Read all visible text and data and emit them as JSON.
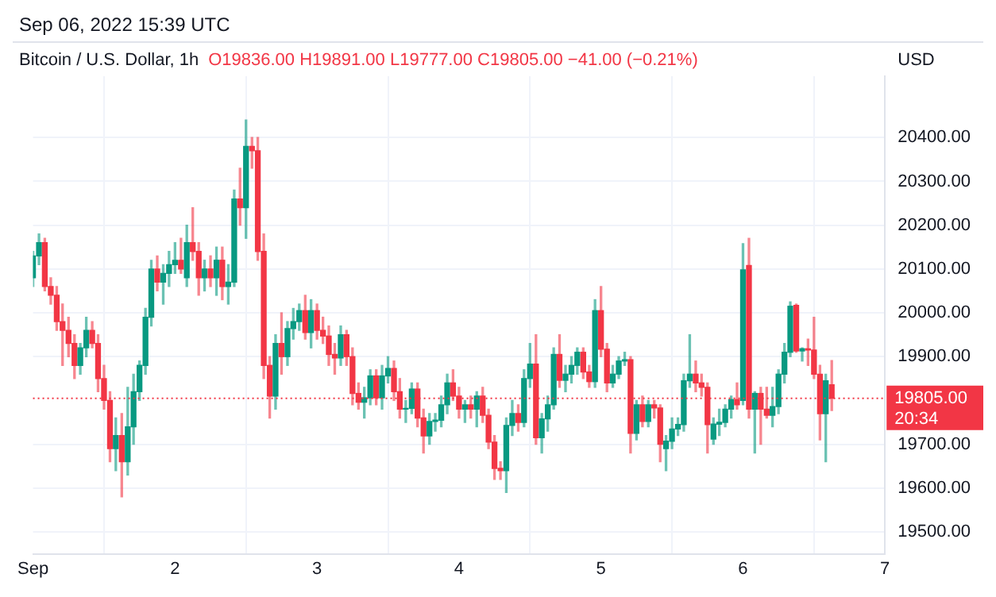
{
  "chart_data": {
    "type": "candlestick",
    "title": "Bitcoin / U.S. Dollar, 1h",
    "subtitle": "O19836.00 H19891.00 L19777.00 C19805.00 −41.00 (−0.21%)",
    "annotations": [
      "Sep 06, 2022 15:39 UTC",
      "20:34"
    ],
    "ylabel": "USD",
    "colors": [
      "#089981",
      "#089981",
      "#f23645",
      "#f23645",
      "#f23645",
      "#f23645",
      "#f23645",
      "#f23645",
      "#089981",
      "#089981",
      "#f23645",
      "#f23645",
      "#f23645",
      "#f23645",
      "#089981",
      "#f23645",
      "#089981",
      "#089981",
      "#089981",
      "#089981",
      "#089981",
      "#f23645",
      "#089981",
      "#089981",
      "#089981",
      "#f23645",
      "#089981",
      "#f23645",
      "#f23645",
      "#089981",
      "#f23645",
      "#089981",
      "#f23645",
      "#089981",
      "#089981",
      "#f23645",
      "#089981",
      "#f23645",
      "#f23645",
      "#f23645",
      "#f23645",
      "#089981",
      "#f23645",
      "#089981",
      "#089981",
      "#089981",
      "#f23645",
      "#089981",
      "#f23645",
      "#f23645",
      "#f23645",
      "#f23645",
      "#089981",
      "#f23645",
      "#f23645",
      "#f23645",
      "#089981",
      "#089981",
      "#f23645",
      "#089981",
      "#089981",
      "#f23645",
      "#f23645",
      "#089981",
      "#089981",
      "#f23645",
      "#f23645",
      "#089981",
      "#089981",
      "#089981",
      "#089981",
      "#f23645",
      "#f23645",
      "#089981",
      "#f23645",
      "#089981",
      "#f23645",
      "#f23645",
      "#f23645",
      "#f23645",
      "#089981",
      "#089981",
      "#f23645",
      "#089981",
      "#089981",
      "#f23645",
      "#089981",
      "#089981",
      "#089981",
      "#f23645",
      "#089981",
      "#089981",
      "#089981",
      "#f23645",
      "#f23645",
      "#089981",
      "#f23645",
      "#f23645",
      "#089981",
      "#089981",
      "#089981",
      "#f23645",
      "#089981",
      "#f23645",
      "#089981",
      "#f23645",
      "#f23645",
      "#089981",
      "#089981",
      "#089981",
      "#089981",
      "#089981",
      "#f23645",
      "#f23645",
      "#f23645",
      "#089981",
      "#089981",
      "#089981",
      "#089981",
      "#f23645",
      "#089981",
      "#f23645",
      "#089981",
      "#f23645",
      "#f23645",
      "#089981",
      "#089981",
      "#089981",
      "#089981",
      "#f23645",
      "#089981",
      "#f23645",
      "#f23645",
      "#f23645",
      "#089981",
      "#f23645"
    ],
    "x": [
      1,
      1.042,
      1.083,
      1.125,
      1.167,
      1.208,
      1.25,
      1.292,
      1.333,
      1.375,
      1.417,
      1.458,
      1.5,
      1.542,
      1.583,
      1.625,
      1.667,
      1.708,
      1.75,
      1.792,
      1.833,
      1.875,
      1.917,
      1.958,
      2,
      2.042,
      2.083,
      2.125,
      2.167,
      2.208,
      2.25,
      2.292,
      2.333,
      2.375,
      2.417,
      2.458,
      2.5,
      2.542,
      2.583,
      2.625,
      2.667,
      2.708,
      2.75,
      2.792,
      2.833,
      2.875,
      2.917,
      2.958,
      3,
      3.042,
      3.083,
      3.125,
      3.167,
      3.208,
      3.25,
      3.292,
      3.333,
      3.375,
      3.417,
      3.458,
      3.5,
      3.542,
      3.583,
      3.625,
      3.667,
      3.708,
      3.75,
      3.792,
      3.833,
      3.875,
      3.917,
      3.958,
      4,
      4.042,
      4.083,
      4.125,
      4.167,
      4.208,
      4.25,
      4.292,
      4.333,
      4.375,
      4.417,
      4.458,
      4.5,
      4.542,
      4.583,
      4.625,
      4.667,
      4.708,
      4.75,
      4.792,
      4.833,
      4.875,
      4.917,
      4.958,
      5,
      5.042,
      5.083,
      5.125,
      5.167,
      5.208,
      5.25,
      5.292,
      5.333,
      5.375,
      5.417,
      5.458,
      5.5,
      5.542,
      5.583,
      5.625,
      5.667,
      5.708,
      5.75,
      5.792,
      5.833,
      5.875,
      5.917,
      5.958,
      6,
      6.042,
      6.083,
      6.125,
      6.167,
      6.208,
      6.25,
      6.292,
      6.333,
      6.375,
      6.417,
      6.458,
      6.5,
      6.542,
      6.583,
      6.625
    ],
    "ohlc": [
      [
        20080,
        20140,
        20060,
        20130
      ],
      [
        20130,
        20180,
        20110,
        20160
      ],
      [
        20160,
        20170,
        20050,
        20060
      ],
      [
        20060,
        20080,
        20020,
        20040
      ],
      [
        20040,
        20060,
        19960,
        19980
      ],
      [
        19980,
        20020,
        19880,
        19960
      ],
      [
        19960,
        19990,
        19900,
        19930
      ],
      [
        19930,
        19950,
        19850,
        19880
      ],
      [
        19880,
        19930,
        19860,
        19920
      ],
      [
        19920,
        19990,
        19900,
        19960
      ],
      [
        19960,
        19980,
        19920,
        19930
      ],
      [
        19930,
        19950,
        19820,
        19850
      ],
      [
        19850,
        19880,
        19780,
        19800
      ],
      [
        19800,
        19820,
        19660,
        19690
      ],
      [
        19690,
        19760,
        19640,
        19720
      ],
      [
        19720,
        19770,
        19580,
        19660
      ],
      [
        19660,
        19830,
        19630,
        19740
      ],
      [
        19740,
        19860,
        19700,
        19820
      ],
      [
        19820,
        19890,
        19800,
        19880
      ],
      [
        19880,
        20010,
        19860,
        19990
      ],
      [
        19990,
        20120,
        19970,
        20100
      ],
      [
        20100,
        20130,
        20050,
        20070
      ],
      [
        20070,
        20110,
        20020,
        20090
      ],
      [
        20090,
        20140,
        20060,
        20110
      ],
      [
        20110,
        20160,
        20090,
        20120
      ],
      [
        20120,
        20170,
        20090,
        20100
      ],
      [
        20080,
        20200,
        20060,
        20160
      ],
      [
        20160,
        20240,
        20120,
        20140
      ],
      [
        20140,
        20160,
        20040,
        20080
      ],
      [
        20080,
        20120,
        20050,
        20100
      ],
      [
        20100,
        20130,
        20060,
        20080
      ],
      [
        20080,
        20150,
        20040,
        20120
      ],
      [
        20120,
        20150,
        20030,
        20060
      ],
      [
        20060,
        20110,
        20020,
        20070
      ],
      [
        20070,
        20280,
        20060,
        20260
      ],
      [
        20260,
        20330,
        20200,
        20240
      ],
      [
        20240,
        20440,
        20170,
        20380
      ],
      [
        20380,
        20400,
        20330,
        20370
      ],
      [
        20370,
        20400,
        20120,
        20140
      ],
      [
        20140,
        20180,
        19850,
        19880
      ],
      [
        19880,
        19900,
        19760,
        19810
      ],
      [
        19810,
        19950,
        19780,
        19930
      ],
      [
        19930,
        20000,
        19860,
        19900
      ],
      [
        19900,
        19980,
        19880,
        19964
      ],
      [
        19964,
        20010,
        19940,
        19980
      ],
      [
        19980,
        20020,
        19960,
        20005
      ],
      [
        20005,
        20040,
        19940,
        19955
      ],
      [
        19955,
        20030,
        19920,
        20005
      ],
      [
        20005,
        20020,
        19940,
        19960
      ],
      [
        19960,
        19990,
        19930,
        19947
      ],
      [
        19947,
        19970,
        19880,
        19905
      ],
      [
        19905,
        19930,
        19860,
        19897
      ],
      [
        19897,
        19970,
        19880,
        19950
      ],
      [
        19950,
        19960,
        19880,
        19900
      ],
      [
        19900,
        19920,
        19790,
        19816
      ],
      [
        19816,
        19840,
        19780,
        19796
      ],
      [
        19796,
        19830,
        19760,
        19806
      ],
      [
        19806,
        19870,
        19790,
        19856
      ],
      [
        19856,
        19870,
        19790,
        19806
      ],
      [
        19806,
        19880,
        19780,
        19856
      ],
      [
        19856,
        19900,
        19840,
        19873
      ],
      [
        19873,
        19890,
        19800,
        19820
      ],
      [
        19820,
        19850,
        19760,
        19780
      ],
      [
        19780,
        19800,
        19750,
        19782
      ],
      [
        19782,
        19840,
        19770,
        19826
      ],
      [
        19826,
        19840,
        19740,
        19760
      ],
      [
        19760,
        19780,
        19680,
        19719
      ],
      [
        19719,
        19770,
        19700,
        19752
      ],
      [
        19752,
        19770,
        19730,
        19755
      ],
      [
        19755,
        19810,
        19740,
        19790
      ],
      [
        19790,
        19860,
        19770,
        19840
      ],
      [
        19840,
        19870,
        19800,
        19810
      ],
      [
        19810,
        19830,
        19760,
        19780
      ],
      [
        19780,
        19800,
        19750,
        19790
      ],
      [
        19790,
        19810,
        19760,
        19780
      ],
      [
        19780,
        19820,
        19740,
        19810
      ],
      [
        19810,
        19830,
        19750,
        19766
      ],
      [
        19766,
        19780,
        19690,
        19705
      ],
      [
        19705,
        19720,
        19620,
        19645
      ],
      [
        19645,
        19660,
        19620,
        19640
      ],
      [
        19640,
        19760,
        19590,
        19743
      ],
      [
        19743,
        19800,
        19720,
        19770
      ],
      [
        19770,
        19790,
        19730,
        19750
      ],
      [
        19750,
        19870,
        19740,
        19850
      ],
      [
        19850,
        19930,
        19830,
        19883
      ],
      [
        19883,
        19950,
        19700,
        19715
      ],
      [
        19715,
        19770,
        19680,
        19758
      ],
      [
        19758,
        19810,
        19730,
        19790
      ],
      [
        19790,
        19920,
        19780,
        19905
      ],
      [
        19905,
        19950,
        19830,
        19846
      ],
      [
        19846,
        19880,
        19820,
        19860
      ],
      [
        19860,
        19900,
        19840,
        19880
      ],
      [
        19880,
        19920,
        19860,
        19910
      ],
      [
        19910,
        19920,
        19850,
        19865
      ],
      [
        19865,
        19880,
        19830,
        19843
      ],
      [
        19843,
        20030,
        19830,
        20005
      ],
      [
        20005,
        20060,
        19900,
        19917
      ],
      [
        19917,
        19930,
        19820,
        19840
      ],
      [
        19840,
        19880,
        19830,
        19860
      ],
      [
        19860,
        19900,
        19850,
        19890
      ],
      [
        19890,
        19910,
        19880,
        19893
      ],
      [
        19893,
        19900,
        19680,
        19725
      ],
      [
        19725,
        19800,
        19710,
        19790
      ],
      [
        19790,
        19810,
        19740,
        19752
      ],
      [
        19752,
        19800,
        19740,
        19790
      ],
      [
        19790,
        19800,
        19760,
        19783
      ],
      [
        19783,
        19790,
        19660,
        19700
      ],
      [
        19690,
        19720,
        19640,
        19707
      ],
      [
        19707,
        19760,
        19690,
        19735
      ],
      [
        19735,
        19760,
        19720,
        19745
      ],
      [
        19745,
        19860,
        19730,
        19845
      ],
      [
        19845,
        19950,
        19830,
        19860
      ],
      [
        19860,
        19890,
        19820,
        19840
      ],
      [
        19840,
        19860,
        19810,
        19830
      ],
      [
        19830,
        19840,
        19680,
        19745
      ],
      [
        19712,
        19760,
        19700,
        19746
      ],
      [
        19746,
        19780,
        19720,
        19750
      ],
      [
        19750,
        19790,
        19740,
        19780
      ],
      [
        19780,
        19810,
        19760,
        19802
      ],
      [
        19802,
        19840,
        19780,
        19790
      ],
      [
        19800,
        20158,
        19790,
        20098
      ],
      [
        20108,
        20170,
        19760,
        19780
      ],
      [
        19780,
        19820,
        19680,
        19816
      ],
      [
        19816,
        19830,
        19700,
        19780
      ],
      [
        19780,
        19830,
        19760,
        19766
      ],
      [
        19766,
        19830,
        19740,
        19786
      ],
      [
        19786,
        19870,
        19770,
        19860
      ],
      [
        19860,
        19930,
        19840,
        19910
      ],
      [
        19910,
        20025,
        19900,
        20015
      ],
      [
        20017,
        20020,
        19910,
        19913
      ],
      [
        19913,
        19920,
        19890,
        19918
      ],
      [
        19918,
        19940,
        19880,
        19915
      ],
      [
        19915,
        19990,
        19850,
        19860
      ],
      [
        19860,
        19880,
        19710,
        19770
      ],
      [
        19770,
        19860,
        19660,
        19845
      ],
      [
        19836,
        19891,
        19777,
        19805
      ]
    ],
    "xlim": [
      1,
      7
    ],
    "xticks": [
      {
        "value": 1,
        "label": "Sep"
      },
      2,
      3,
      4,
      5,
      6,
      7
    ],
    "ylim": [
      19450,
      20540
    ],
    "yticks": [
      {
        "value": 19500,
        "label": "19500.00"
      },
      {
        "value": 19600,
        "label": "19600.00"
      },
      {
        "value": 19700,
        "label": "19700.00"
      },
      {
        "value": 19900,
        "label": "19900.00"
      },
      {
        "value": 20000,
        "label": "20000.00"
      },
      {
        "value": 20100,
        "label": "20100.00"
      },
      {
        "value": 20200,
        "label": "20200.00"
      },
      {
        "value": 20300,
        "label": "20300.00"
      },
      {
        "value": 20400,
        "label": "20400.00"
      }
    ],
    "ref_lines": [
      {
        "axis": "y",
        "value": 19805,
        "label": "19805.00",
        "color": "#f23645",
        "line_style": "dotted"
      }
    ],
    "grid": true,
    "legend": false
  }
}
